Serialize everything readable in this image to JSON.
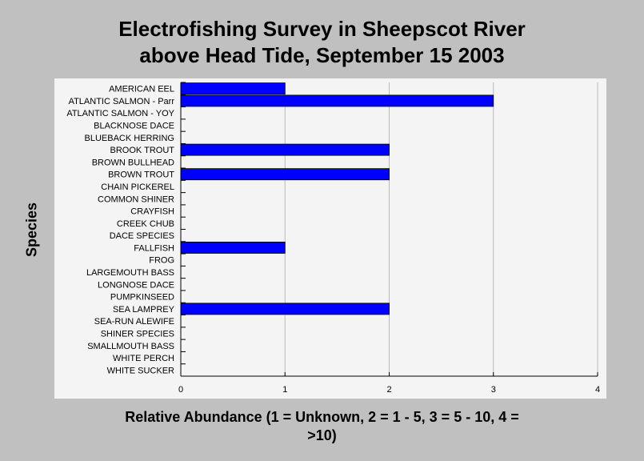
{
  "chart_data": {
    "type": "bar",
    "orientation": "horizontal",
    "title": [
      "Electrofishing Survey in Sheepscot River",
      "above Head Tide, September 15 2003"
    ],
    "ylabel": "Species",
    "xlabel": [
      "Relative Abundance (1 = Unknown, 2 = 1 - 5, 3 = 5 - 10, 4 =",
      ">10)"
    ],
    "xlim": [
      0,
      4
    ],
    "xticks": [
      "0",
      "1",
      "2",
      "3",
      "4"
    ],
    "grid": "vertical",
    "bar_color": "#0000ff",
    "categories": [
      "AMERICAN EEL",
      "ATLANTIC SALMON - Parr",
      "ATLANTIC SALMON - YOY",
      "BLACKNOSE DACE",
      "BLUEBACK HERRING",
      "BROOK TROUT",
      "BROWN BULLHEAD",
      "BROWN TROUT",
      "CHAIN PICKEREL",
      "COMMON SHINER",
      "CRAYFISH",
      "CREEK CHUB",
      "DACE SPECIES",
      "FALLFISH",
      "FROG",
      "LARGEMOUTH BASS",
      "LONGNOSE DACE",
      "PUMPKINSEED",
      "SEA LAMPREY",
      "SEA-RUN ALEWIFE",
      "SHINER SPECIES",
      "SMALLMOUTH BASS",
      "WHITE PERCH",
      "WHITE SUCKER"
    ],
    "values": [
      1,
      3,
      0,
      0,
      0,
      2,
      0,
      2,
      0,
      0,
      0,
      0,
      0,
      1,
      0,
      0,
      0,
      0,
      2,
      0,
      0,
      0,
      0,
      0
    ]
  }
}
